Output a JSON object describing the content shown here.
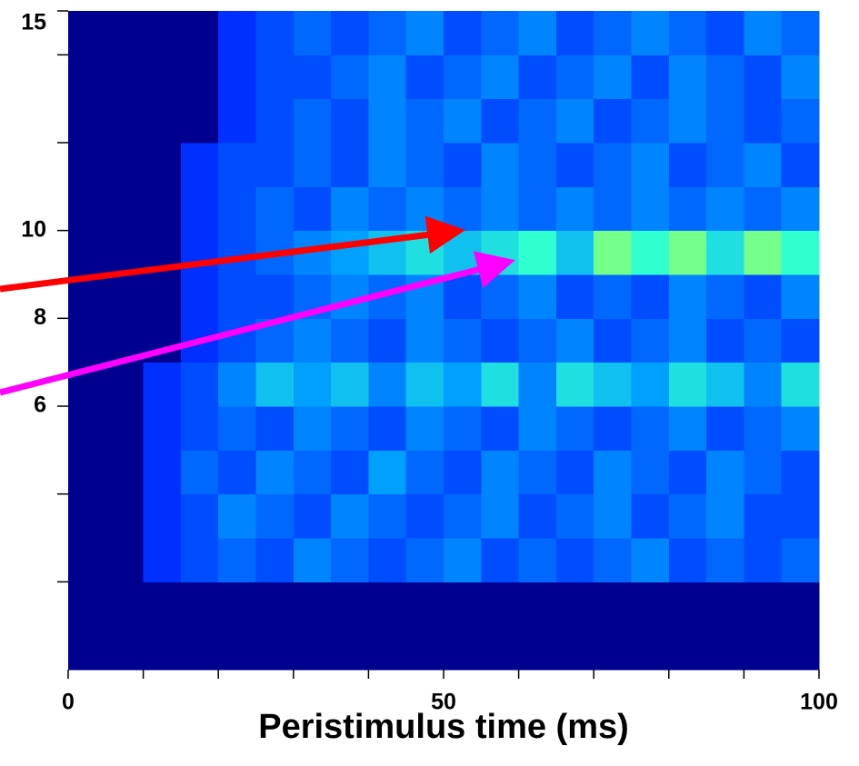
{
  "chart_data": {
    "type": "heatmap",
    "x_label": "Peristimulus time (ms)",
    "xlim": [
      0,
      100
    ],
    "xticks": [
      0,
      50,
      100
    ],
    "xminor_ticks": [
      10,
      20,
      30,
      40,
      60,
      70,
      80,
      90
    ],
    "ylim": [
      0,
      15
    ],
    "yticks": [
      6,
      8,
      10,
      15
    ],
    "yminor_ticks": [
      2,
      4,
      12,
      14
    ],
    "xbins": [
      0,
      5,
      10,
      15,
      20,
      25,
      30,
      35,
      40,
      45,
      50,
      55,
      60,
      65,
      70,
      75,
      80,
      85,
      90,
      95,
      100
    ],
    "ybins": [
      0,
      1,
      2,
      3,
      4,
      5,
      6,
      7,
      8,
      9,
      10,
      11,
      12,
      13,
      14,
      15
    ],
    "colorscale": [
      [
        0,
        "#00008f"
      ],
      [
        0.35,
        "#0030ff"
      ],
      [
        0.55,
        "#00a0ff"
      ],
      [
        0.7,
        "#30ffd0"
      ],
      [
        0.85,
        "#ffff00"
      ],
      [
        1,
        "#c00000"
      ]
    ],
    "z": [
      [
        0,
        0,
        0,
        0,
        0,
        0,
        0,
        0,
        0,
        0,
        0,
        0,
        0,
        0,
        0,
        0,
        0,
        0,
        0,
        0
      ],
      [
        0,
        0,
        0,
        0,
        0,
        0,
        0,
        0,
        0,
        0,
        0,
        0,
        0,
        0,
        0,
        0,
        0,
        0,
        0,
        0
      ],
      [
        0,
        0,
        0.35,
        0.4,
        0.45,
        0.4,
        0.5,
        0.45,
        0.4,
        0.45,
        0.5,
        0.4,
        0.45,
        0.4,
        0.45,
        0.5,
        0.4,
        0.45,
        0.4,
        0.45
      ],
      [
        0,
        0,
        0.35,
        0.4,
        0.5,
        0.45,
        0.4,
        0.5,
        0.45,
        0.4,
        0.45,
        0.5,
        0.4,
        0.45,
        0.5,
        0.4,
        0.45,
        0.5,
        0.4,
        0.4
      ],
      [
        0,
        0,
        0.35,
        0.45,
        0.4,
        0.5,
        0.45,
        0.4,
        0.55,
        0.45,
        0.4,
        0.5,
        0.45,
        0.4,
        0.5,
        0.45,
        0.4,
        0.5,
        0.45,
        0.4
      ],
      [
        0,
        0,
        0.35,
        0.4,
        0.45,
        0.4,
        0.5,
        0.45,
        0.4,
        0.5,
        0.45,
        0.4,
        0.5,
        0.45,
        0.4,
        0.45,
        0.5,
        0.4,
        0.45,
        0.5
      ],
      [
        0,
        0,
        0.35,
        0.4,
        0.5,
        0.6,
        0.55,
        0.6,
        0.5,
        0.6,
        0.55,
        0.65,
        0.5,
        0.65,
        0.6,
        0.55,
        0.65,
        0.6,
        0.5,
        0.65
      ],
      [
        0,
        0,
        0,
        0.35,
        0.4,
        0.45,
        0.5,
        0.45,
        0.4,
        0.5,
        0.45,
        0.4,
        0.45,
        0.5,
        0.4,
        0.45,
        0.5,
        0.4,
        0.45,
        0.4
      ],
      [
        0,
        0,
        0,
        0.35,
        0.4,
        0.4,
        0.45,
        0.5,
        0.45,
        0.5,
        0.4,
        0.45,
        0.5,
        0.4,
        0.45,
        0.4,
        0.5,
        0.45,
        0.4,
        0.5
      ],
      [
        0,
        0,
        0,
        0.35,
        0.4,
        0.45,
        0.5,
        0.55,
        0.6,
        0.65,
        0.6,
        0.65,
        0.7,
        0.6,
        0.75,
        0.7,
        0.75,
        0.65,
        0.75,
        0.7
      ],
      [
        0,
        0,
        0,
        0.35,
        0.4,
        0.45,
        0.4,
        0.5,
        0.45,
        0.5,
        0.45,
        0.5,
        0.45,
        0.5,
        0.45,
        0.5,
        0.45,
        0.5,
        0.45,
        0.5
      ],
      [
        0,
        0,
        0,
        0.35,
        0.4,
        0.4,
        0.45,
        0.4,
        0.5,
        0.45,
        0.4,
        0.5,
        0.45,
        0.4,
        0.45,
        0.5,
        0.4,
        0.45,
        0.5,
        0.4
      ],
      [
        0,
        0,
        0,
        0,
        0.35,
        0.4,
        0.45,
        0.4,
        0.5,
        0.45,
        0.5,
        0.4,
        0.45,
        0.5,
        0.4,
        0.45,
        0.5,
        0.45,
        0.4,
        0.45
      ],
      [
        0,
        0,
        0,
        0,
        0.35,
        0.4,
        0.4,
        0.45,
        0.5,
        0.4,
        0.45,
        0.5,
        0.4,
        0.45,
        0.5,
        0.4,
        0.5,
        0.45,
        0.4,
        0.5
      ],
      [
        0,
        0,
        0,
        0,
        0.35,
        0.4,
        0.45,
        0.4,
        0.45,
        0.5,
        0.4,
        0.45,
        0.5,
        0.4,
        0.45,
        0.5,
        0.45,
        0.4,
        0.5,
        0.45
      ]
    ]
  }
}
